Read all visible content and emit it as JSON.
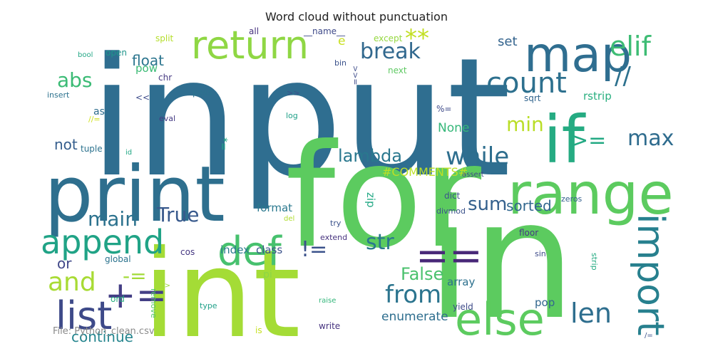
{
  "title": "Word cloud without punctuation",
  "footer": "File: Python_clean.csv",
  "words": [
    {
      "text": "input",
      "color": "#2f6e90"
    },
    {
      "text": "for",
      "color": "#5ccb5f"
    },
    {
      "text": "in",
      "color": "#5ccb5f"
    },
    {
      "text": "int",
      "color": "#a4dc36"
    },
    {
      "text": "print",
      "color": "#2e6f8e"
    },
    {
      "text": "if",
      "color": "#25ab82"
    },
    {
      "text": "range",
      "color": "#5ccb5f"
    },
    {
      "text": "map",
      "color": "#2f6e90"
    },
    {
      "text": "return",
      "color": "#8fd744"
    },
    {
      "text": "def",
      "color": "#47c16e"
    },
    {
      "text": "append",
      "color": "#20a386"
    },
    {
      "text": "import",
      "color": "#27808e"
    },
    {
      "text": "else",
      "color": "#5ccb5f"
    },
    {
      "text": "list",
      "color": "#3e4a89"
    },
    {
      "text": "==",
      "color": "#482878"
    },
    {
      "text": "elif",
      "color": "#3dbc74"
    },
    {
      "text": "count",
      "color": "#2d708e"
    },
    {
      "text": "while",
      "color": "#2e6e8e"
    },
    {
      "text": "from",
      "color": "#2b748e"
    },
    {
      "text": "len",
      "color": "#2e6e8e"
    },
    {
      "text": "+=",
      "color": "#433e85"
    },
    {
      "text": "break",
      "color": "#31688e"
    },
    {
      "text": "and",
      "color": "#a8db34"
    },
    {
      "text": "**",
      "color": "#c2df23"
    },
    {
      "text": "//",
      "color": "#2d718e"
    },
    {
      "text": ">=",
      "color": "#23a983"
    },
    {
      "text": "main",
      "color": "#2c728e"
    },
    {
      "text": "True",
      "color": "#38598c"
    },
    {
      "text": "sum",
      "color": "#34608d"
    },
    {
      "text": "str",
      "color": "#2a788e"
    },
    {
      "text": "max",
      "color": "#2f6c8e"
    },
    {
      "text": "min",
      "color": "#bade28"
    },
    {
      "text": "abs",
      "color": "#3bbb75"
    },
    {
      "text": "lambda",
      "color": "#2a788e"
    },
    {
      "text": "sorted",
      "color": "#31678e"
    },
    {
      "text": "!=",
      "color": "#3b528b"
    },
    {
      "text": "False",
      "color": "#4ac16d"
    },
    {
      "text": "-=",
      "color": "#a2da37"
    },
    {
      "text": "continue",
      "color": "#25858e"
    },
    {
      "text": "float",
      "color": "#2b758e"
    },
    {
      "text": "enumerate",
      "color": "#2e6e8e"
    },
    {
      "text": "not",
      "color": "#355e8d"
    },
    {
      "text": "or",
      "color": "#3f4788"
    },
    {
      "text": "set",
      "color": "#33638d"
    },
    {
      "text": "None",
      "color": "#35b779"
    },
    {
      "text": "#COMMENTS#",
      "color": "#bddf26"
    },
    {
      "text": "index",
      "color": "#2a788e"
    },
    {
      "text": "class",
      "color": "#3b528b"
    },
    {
      "text": "format",
      "color": "#2a788e"
    },
    {
      "text": "pop",
      "color": "#31668e"
    },
    {
      "text": "array",
      "color": "#2d718e"
    },
    {
      "text": "rstrip",
      "color": "#29af7f"
    },
    {
      "text": "zip",
      "color": "#22a884"
    },
    {
      "text": "pow",
      "color": "#3bbb75"
    },
    {
      "text": "as",
      "color": "#2e6d8e"
    },
    {
      "text": "split",
      "color": "#b5de2b"
    },
    {
      "text": "all",
      "color": "#46327e"
    },
    {
      "text": "__name__",
      "color": "#3e4989"
    },
    {
      "text": "except",
      "color": "#95d840"
    },
    {
      "text": "e",
      "color": "#c8e020"
    },
    {
      "text": "next",
      "color": "#5ec962"
    },
    {
      "text": "sqrt",
      "color": "#32658e"
    },
    {
      "text": "chr",
      "color": "#453882"
    },
    {
      "text": "pass",
      "color": "#2c728e"
    },
    {
      "text": "open",
      "color": "#1f958b"
    },
    {
      "text": "bin",
      "color": "#3b528b"
    },
    {
      "text": "<<",
      "color": "#3e4c8a"
    },
    {
      "text": ">>",
      "color": "#3b528b"
    },
    {
      "text": "insert",
      "color": "#2c728e"
    },
    {
      "text": "bool",
      "color": "#22a785"
    },
    {
      "text": "%=",
      "color": "#3e4a89"
    },
    {
      "text": "eval",
      "color": "#443a83"
    },
    {
      "text": "log",
      "color": "#1fa088"
    },
    {
      "text": "//=",
      "color": "#d0e11c"
    },
    {
      "text": "*=",
      "color": "#21a685"
    },
    {
      "text": "tuple",
      "color": "#2c728e"
    },
    {
      "text": "id",
      "color": "#22a785"
    },
    {
      "text": "dict",
      "color": "#3a548c"
    },
    {
      "text": "assert",
      "color": "#3e4989"
    },
    {
      "text": "zeros",
      "color": "#34618d"
    },
    {
      "text": "divmod",
      "color": "#3b528b"
    },
    {
      "text": "floor",
      "color": "#443983"
    },
    {
      "text": "try",
      "color": "#3b528b"
    },
    {
      "text": "extend",
      "color": "#46327e"
    },
    {
      "text": "global",
      "color": "#2c738e"
    },
    {
      "text": "cos",
      "color": "#453781"
    },
    {
      "text": "pi",
      "color": "#8bd646"
    },
    {
      "text": "sin",
      "color": "#3e4a89"
    },
    {
      "text": "strip",
      "color": "#25ab82"
    },
    {
      "text": "del",
      "color": "#b0dd2f"
    },
    {
      "text": "ord",
      "color": "#29af7f"
    },
    {
      "text": "remove",
      "color": "#52c569"
    },
    {
      "text": "->",
      "color": "#9dd93b"
    },
    {
      "text": "type",
      "color": "#1fa088"
    },
    {
      "text": "raise",
      "color": "#32b67a"
    },
    {
      "text": "yield",
      "color": "#3e4a89"
    },
    {
      "text": "write",
      "color": "#46337f"
    },
    {
      "text": "is",
      "color": "#c5e021"
    },
    {
      "text": "/=",
      "color": "#3b528b"
    },
    {
      "text": ">>=",
      "color": "#3e4c8a"
    }
  ]
}
